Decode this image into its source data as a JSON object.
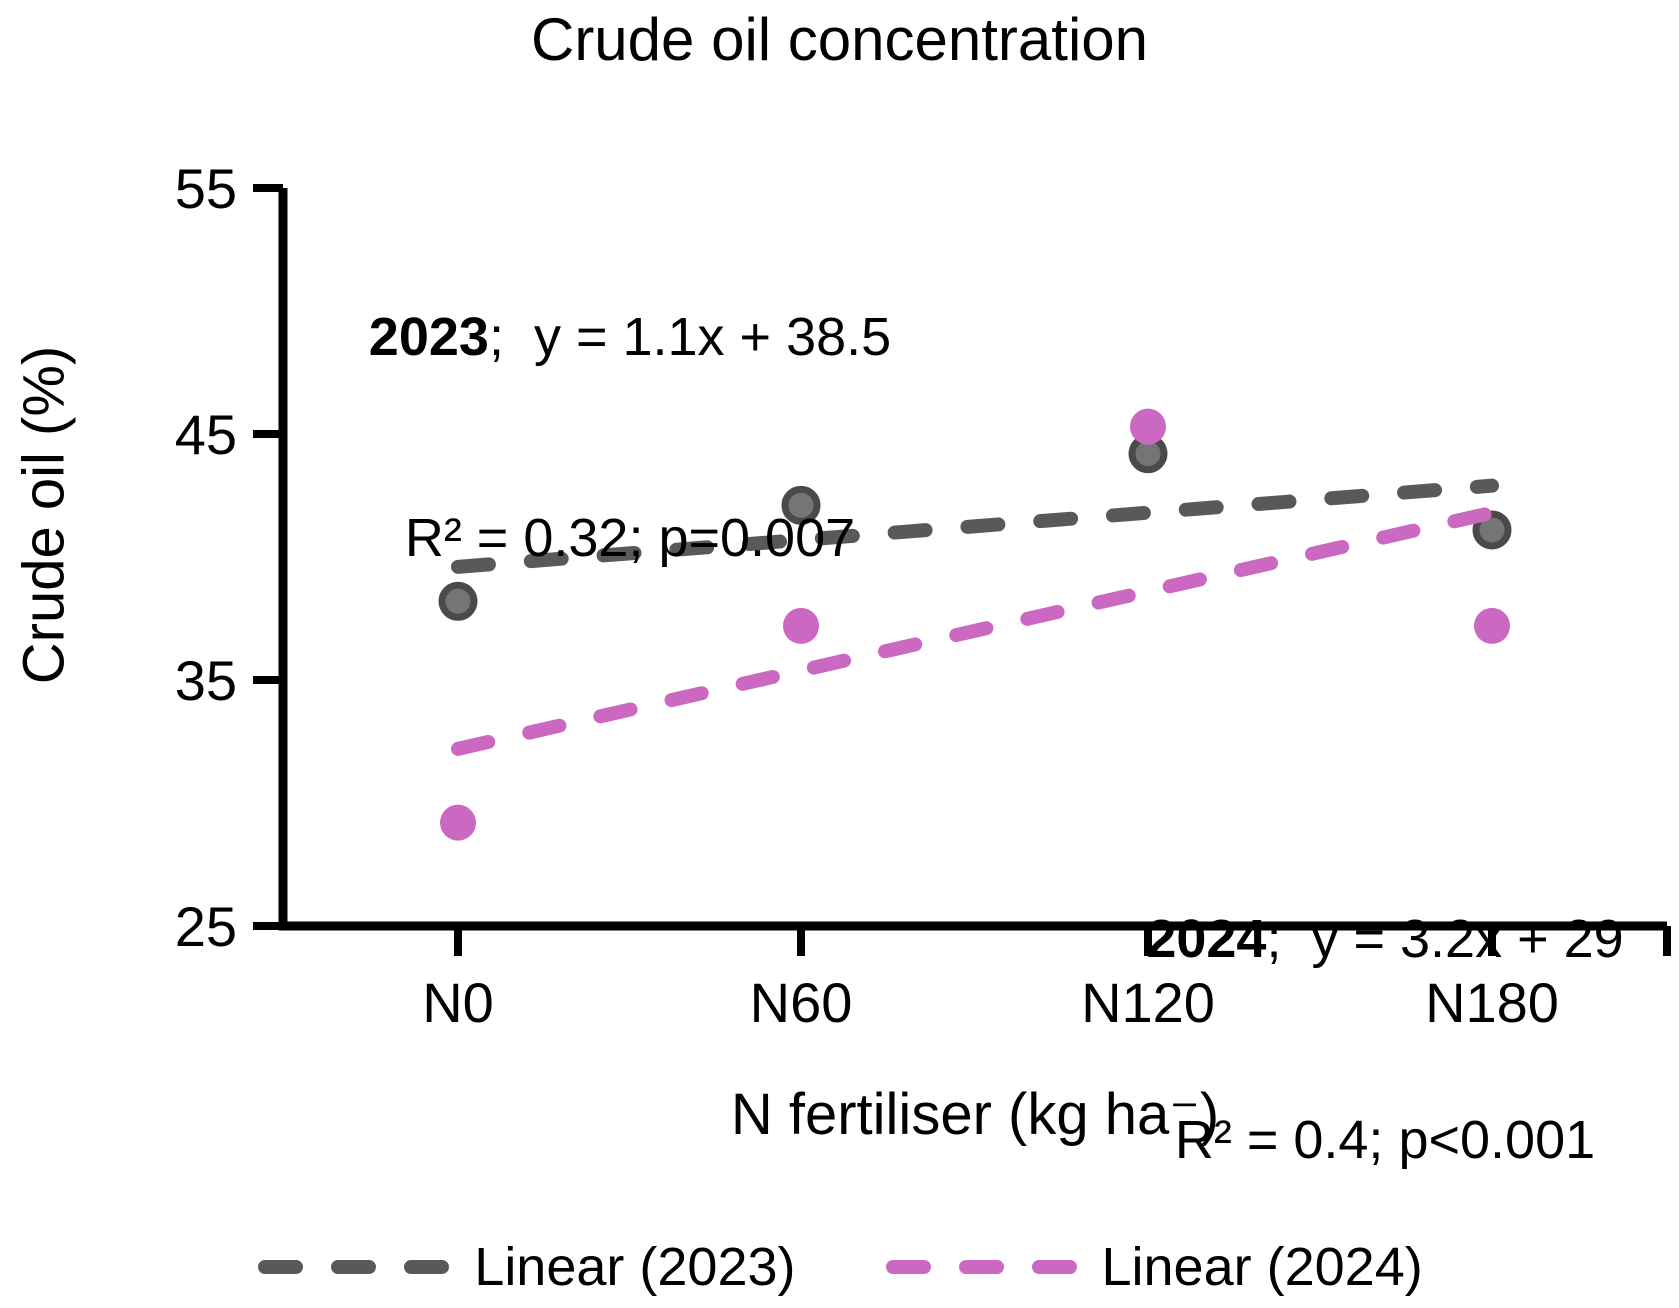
{
  "title": "Crude oil concentration",
  "chart_data": {
    "type": "scatter",
    "categories": [
      "N0",
      "N60",
      "N120",
      "N180"
    ],
    "x_numeric": [
      1,
      2,
      3,
      4
    ],
    "series": [
      {
        "name": "2023",
        "color": "#595959",
        "point_fill": "#757575",
        "point_stroke": "#4a4a4a",
        "values": [
          38.2,
          42.1,
          44.2,
          41.1
        ],
        "trend": {
          "slope": 1.1,
          "intercept": 38.5,
          "r2": 0.32,
          "p": "p=0.007",
          "equation": "y = 1.1x + 38.5"
        }
      },
      {
        "name": "2024",
        "color": "#ca68c2",
        "point_fill": "#ca68c2",
        "point_stroke": "#ca68c2",
        "values": [
          29.2,
          37.2,
          45.3,
          37.2
        ],
        "trend": {
          "slope": 3.2,
          "intercept": 29,
          "r2": 0.4,
          "p": "p<0.001",
          "equation": "y = 3.2x + 29"
        }
      }
    ],
    "xlabel": "N fertiliser (kg ha⁻)",
    "ylabel": "Crude oil (%)",
    "ylim": [
      25,
      55
    ],
    "yticks": [
      55,
      45,
      35,
      25
    ],
    "grid": false,
    "legend_position": "bottom"
  },
  "annotations": {
    "y2023": {
      "year": "2023",
      "rest": ";  y = 1.1x + 38.5",
      "line2": "R² = 0.32; p=0.007"
    },
    "y2024": {
      "year": "2024",
      "rest": ";  y = 3.2x + 29",
      "line2": "R² = 0.4; p<0.001"
    }
  },
  "legend": {
    "items": [
      {
        "label": "Linear (2023)",
        "color": "#595959"
      },
      {
        "label": "Linear (2024)",
        "color": "#ca68c2"
      }
    ]
  }
}
